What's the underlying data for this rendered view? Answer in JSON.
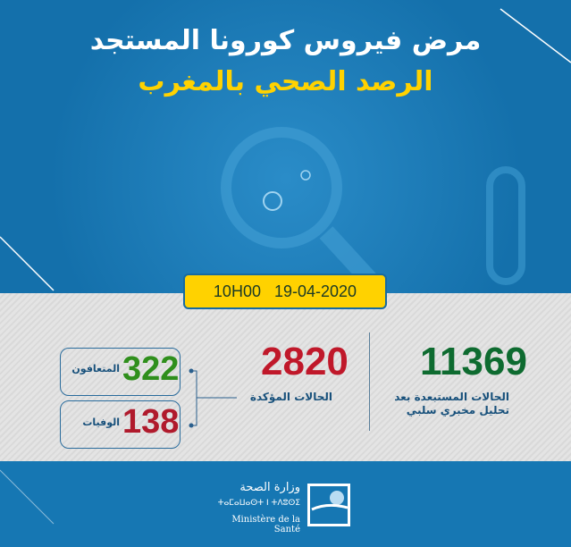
{
  "header": {
    "title": "مرض فيروس كورونا المستجد",
    "subtitle": "الرصد الصحي بالمغرب"
  },
  "date": {
    "time": "10H00",
    "date": "19-04-2020"
  },
  "stats": {
    "excluded": {
      "value": "11369",
      "label_line1": "الحالات المستبعدة بعد",
      "label_line2": "تحليل مخبري سلبي",
      "color": "#0e6b30"
    },
    "confirmed": {
      "value": "2820",
      "label": "الحالات المؤكدة",
      "color": "#c0182a"
    },
    "recovered": {
      "value": "322",
      "label": "المتعافون",
      "color": "#2f8f1c"
    },
    "deaths": {
      "value": "138",
      "label": "الوفيات",
      "color": "#b01a2c"
    }
  },
  "footer": {
    "ministry_ar": "وزارة الصحة",
    "ministry_tifinagh": "ⵜⴰⵎⴰⵡⴰⵙⵜ ⵏ ⵜⴷⵓⵙⵉ",
    "ministry_fr": "Ministère de la Santé"
  }
}
